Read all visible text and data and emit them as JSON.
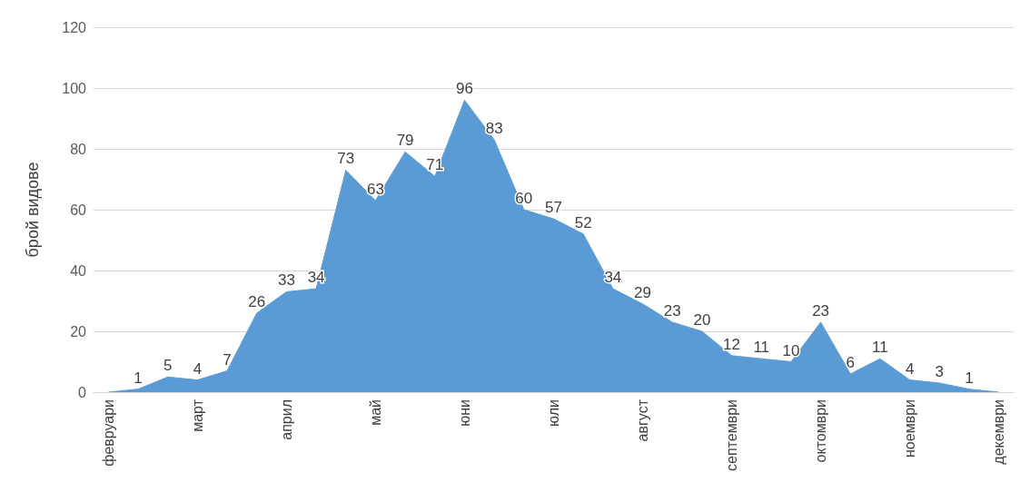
{
  "chart_data": {
    "type": "area",
    "ylabel": "брой видове",
    "categories": [
      "февруари",
      null,
      null,
      "март",
      null,
      null,
      "април",
      null,
      null,
      "май",
      null,
      null,
      "юни",
      null,
      null,
      "юли",
      null,
      null,
      "август",
      null,
      null,
      "септември",
      null,
      null,
      "октомври",
      null,
      null,
      "ноември",
      null,
      null,
      "декември"
    ],
    "series": [
      {
        "color": "#5b9bd5",
        "values": [
          0,
          1,
          5,
          4,
          7,
          26,
          33,
          34,
          73,
          63,
          79,
          71,
          96,
          83,
          60,
          57,
          52,
          34,
          29,
          23,
          20,
          12,
          11,
          10,
          23,
          6,
          11,
          4,
          3,
          1,
          0
        ],
        "value_labels": [
          null,
          "1",
          "5",
          "4",
          "7",
          "26",
          "33",
          "34",
          "73",
          "63",
          "79",
          "71",
          "96",
          "83",
          "60",
          "57",
          "52",
          "34",
          "29",
          "23",
          "20",
          "12",
          "11",
          "10",
          "23",
          "6",
          "11",
          "4",
          "3",
          "1",
          null
        ]
      }
    ],
    "ylim": [
      0,
      120
    ],
    "yticks": [
      0,
      20,
      40,
      60,
      80,
      100,
      120
    ],
    "grid": "y"
  }
}
